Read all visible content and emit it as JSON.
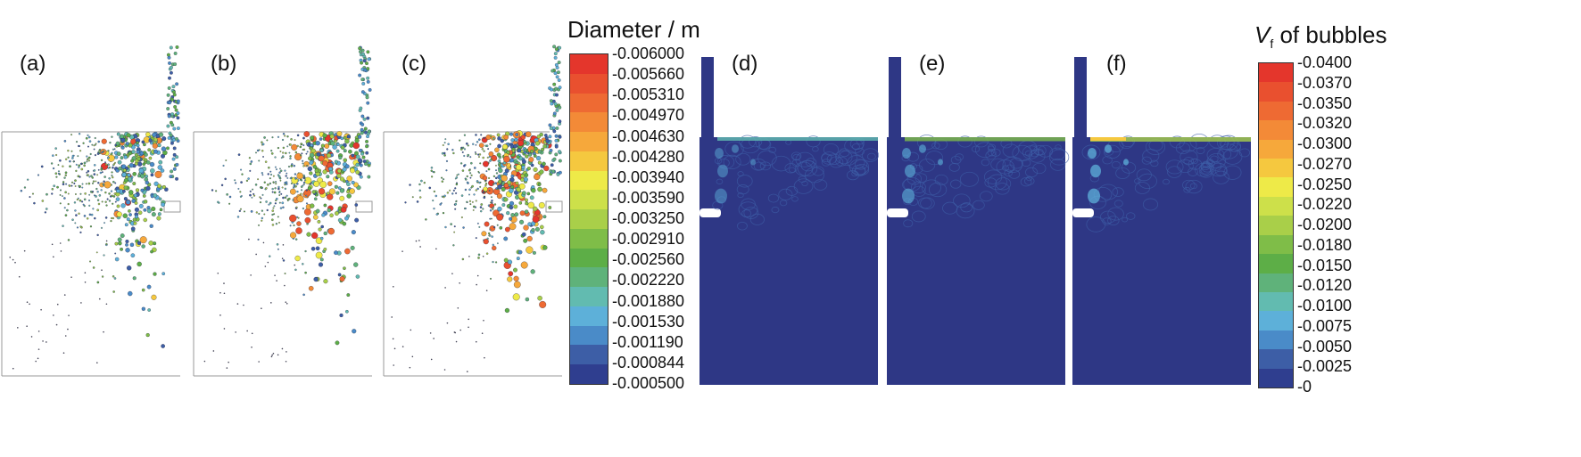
{
  "panel_labels": [
    "(a)",
    "(b)",
    "(c)",
    "(d)",
    "(e)",
    "(f)"
  ],
  "diameter_colorbar": {
    "title": "Diameter / m",
    "ticks": [
      "0.006000",
      "0.005660",
      "0.005310",
      "0.004970",
      "0.004630",
      "0.004280",
      "0.003940",
      "0.003590",
      "0.003250",
      "0.002910",
      "0.002560",
      "0.002220",
      "0.001880",
      "0.001530",
      "0.001190",
      "0.000844",
      "0.000500"
    ],
    "colors": [
      "#e4362c",
      "#e9502f",
      "#ee6a33",
      "#f38a37",
      "#f6a83b",
      "#f5c83f",
      "#eeea48",
      "#cde04a",
      "#a9cf49",
      "#7fbd48",
      "#5dae47",
      "#5fb27a",
      "#62bbb0",
      "#5db0d9",
      "#4a8bc8",
      "#3d5ea6",
      "#2f3e8f"
    ]
  },
  "vf_colorbar": {
    "title_italic": "V",
    "title_sub": "f",
    "title_rest": " of bubbles",
    "ticks": [
      "0.0400",
      "0.0370",
      "0.0350",
      "0.0320",
      "0.0300",
      "0.0270",
      "0.0250",
      "0.0220",
      "0.0200",
      "0.0180",
      "0.0150",
      "0.0120",
      "0.0100",
      "0.0075",
      "0.0050",
      "0.0025",
      "0"
    ],
    "colors": [
      "#e4362c",
      "#e9502f",
      "#ee6a33",
      "#f38a37",
      "#f6a83b",
      "#f5c83f",
      "#eeea48",
      "#cde04a",
      "#a9cf49",
      "#7fbd48",
      "#5dae47",
      "#5fb27a",
      "#62bbb0",
      "#5db0d9",
      "#4a8bc8",
      "#3d5ea6",
      "#2f3e8f"
    ]
  },
  "bubble_panels": [
    {
      "max_level": 0.35
    },
    {
      "max_level": 0.85
    },
    {
      "max_level": 1.0
    }
  ],
  "vf_panels": [
    {
      "intensity": 0.5
    },
    {
      "intensity": 0.75
    },
    {
      "intensity": 1.0
    }
  ],
  "colors": {
    "contour_bg": "#2e3785",
    "box_line": "#555555"
  }
}
